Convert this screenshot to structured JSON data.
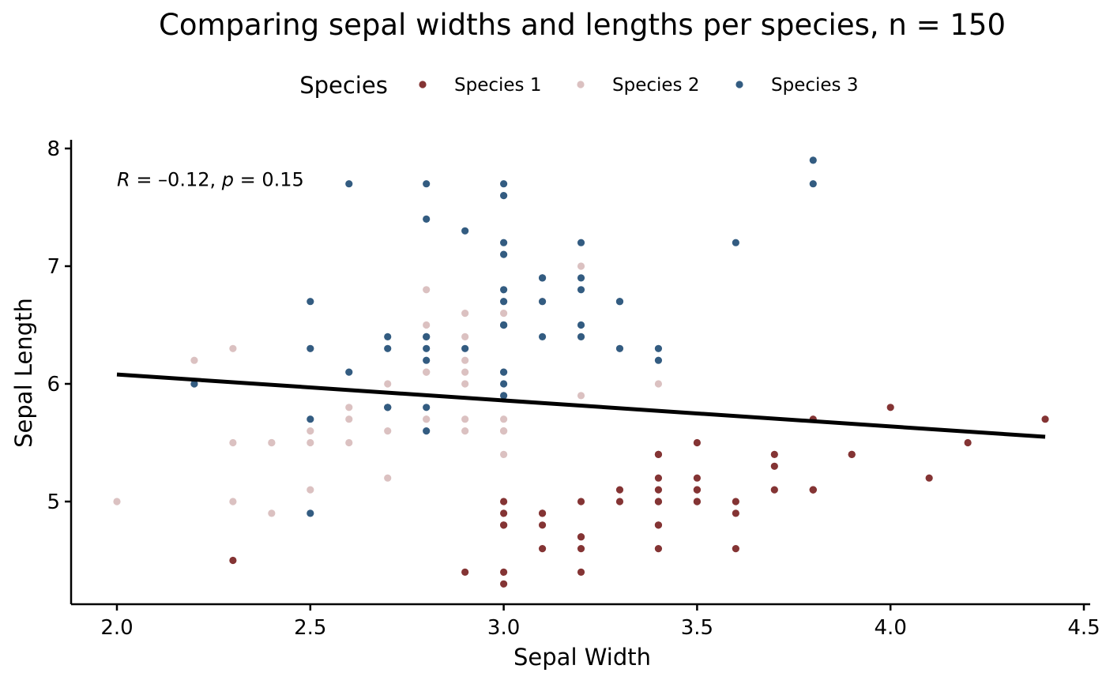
{
  "chart_data": {
    "type": "scatter",
    "title": "Comparing sepal widths and lengths per species, n = 150",
    "xlabel": "Sepal Width",
    "ylabel": "Sepal Length",
    "xlim": [
      1.88,
      4.5
    ],
    "ylim": [
      4.2,
      8.03
    ],
    "x_ticks": [
      "2.0",
      "2.5",
      "3.0",
      "3.5",
      "4.0",
      "4.5"
    ],
    "y_ticks": [
      "5",
      "6",
      "7",
      "8"
    ],
    "grid": false,
    "legend": {
      "title": "Species",
      "position": "top"
    },
    "annotation": {
      "r_label": "R",
      "r_value": " = –0.12, ",
      "p_label": "p",
      "p_value": " = 0.15",
      "x": 2.0,
      "y": 7.74
    },
    "trend_line": {
      "x": [
        2.0,
        4.4
      ],
      "y": [
        6.08,
        5.55
      ],
      "color": "#000000"
    },
    "series": [
      {
        "name": "Species 1",
        "color": "#843434",
        "x": [
          3.5,
          3.0,
          3.2,
          3.1,
          3.6,
          3.9,
          3.4,
          3.4,
          2.9,
          3.1,
          3.7,
          3.4,
          3.0,
          3.0,
          4.0,
          4.4,
          3.9,
          3.5,
          3.8,
          3.8,
          3.4,
          3.7,
          3.6,
          3.3,
          3.4,
          3.0,
          3.4,
          3.5,
          3.4,
          3.2,
          3.1,
          3.4,
          4.1,
          4.2,
          3.1,
          3.2,
          3.5,
          3.6,
          3.0,
          3.4,
          3.5,
          2.3,
          3.2,
          3.5,
          3.8,
          3.0,
          3.8,
          3.2,
          3.7,
          3.3
        ],
        "y": [
          5.1,
          4.9,
          4.7,
          4.6,
          5.0,
          5.4,
          4.6,
          5.0,
          4.4,
          4.9,
          5.4,
          4.8,
          4.8,
          4.3,
          5.8,
          5.7,
          5.4,
          5.1,
          5.7,
          5.1,
          5.4,
          5.1,
          4.6,
          5.1,
          4.8,
          5.0,
          5.0,
          5.2,
          5.2,
          4.7,
          4.8,
          5.4,
          5.2,
          5.5,
          4.9,
          5.0,
          5.5,
          4.9,
          4.4,
          5.1,
          5.0,
          4.5,
          4.4,
          5.0,
          5.1,
          4.8,
          5.1,
          4.6,
          5.3,
          5.0
        ]
      },
      {
        "name": "Species 2",
        "color": "#dbc1c1",
        "x": [
          3.2,
          3.2,
          3.1,
          2.3,
          2.8,
          2.8,
          3.3,
          2.4,
          2.9,
          2.7,
          2.0,
          3.0,
          2.2,
          2.9,
          2.9,
          3.1,
          3.0,
          2.7,
          2.2,
          2.5,
          3.2,
          2.8,
          2.5,
          2.8,
          2.9,
          3.0,
          2.8,
          3.0,
          2.9,
          2.6,
          2.4,
          2.4,
          2.7,
          2.7,
          3.0,
          3.4,
          3.1,
          2.3,
          3.0,
          2.5,
          2.6,
          3.0,
          2.6,
          2.3,
          2.7,
          3.0,
          2.9,
          2.9,
          2.5,
          2.8
        ],
        "y": [
          7.0,
          6.4,
          6.9,
          5.5,
          6.5,
          5.7,
          6.3,
          4.9,
          6.6,
          5.2,
          5.0,
          5.9,
          6.0,
          6.1,
          5.6,
          6.7,
          5.6,
          5.8,
          6.2,
          5.6,
          5.9,
          6.1,
          6.3,
          6.1,
          6.4,
          6.6,
          6.8,
          6.7,
          6.0,
          5.7,
          5.5,
          5.5,
          5.8,
          6.0,
          5.4,
          6.0,
          6.7,
          6.3,
          5.6,
          5.5,
          5.5,
          6.1,
          5.8,
          5.0,
          5.6,
          5.7,
          5.7,
          6.2,
          5.1,
          5.7
        ]
      },
      {
        "name": "Species 3",
        "color": "#335c81",
        "x": [
          3.3,
          2.7,
          3.0,
          2.9,
          3.0,
          3.0,
          2.5,
          2.9,
          2.5,
          3.6,
          3.2,
          2.7,
          3.0,
          2.5,
          2.8,
          3.2,
          3.0,
          3.8,
          2.6,
          2.2,
          3.2,
          2.8,
          2.8,
          2.7,
          3.3,
          3.2,
          2.8,
          3.0,
          2.8,
          3.0,
          2.8,
          3.8,
          2.8,
          2.8,
          2.6,
          3.0,
          3.4,
          3.1,
          3.0,
          3.1,
          3.1,
          3.1,
          2.7,
          3.2,
          3.3,
          3.0,
          2.5,
          3.0,
          3.4,
          3.0
        ],
        "y": [
          6.3,
          5.8,
          7.1,
          6.3,
          6.5,
          7.6,
          4.9,
          7.3,
          6.7,
          7.2,
          6.5,
          6.4,
          6.8,
          5.7,
          5.8,
          6.4,
          6.5,
          7.7,
          7.7,
          6.0,
          6.9,
          5.6,
          7.7,
          6.3,
          6.7,
          7.2,
          6.2,
          6.1,
          6.4,
          7.2,
          7.4,
          7.9,
          6.4,
          6.3,
          6.1,
          7.7,
          6.3,
          6.4,
          6.0,
          6.9,
          6.7,
          6.9,
          5.8,
          6.8,
          6.7,
          6.7,
          6.3,
          6.5,
          6.2,
          5.9
        ]
      }
    ]
  }
}
